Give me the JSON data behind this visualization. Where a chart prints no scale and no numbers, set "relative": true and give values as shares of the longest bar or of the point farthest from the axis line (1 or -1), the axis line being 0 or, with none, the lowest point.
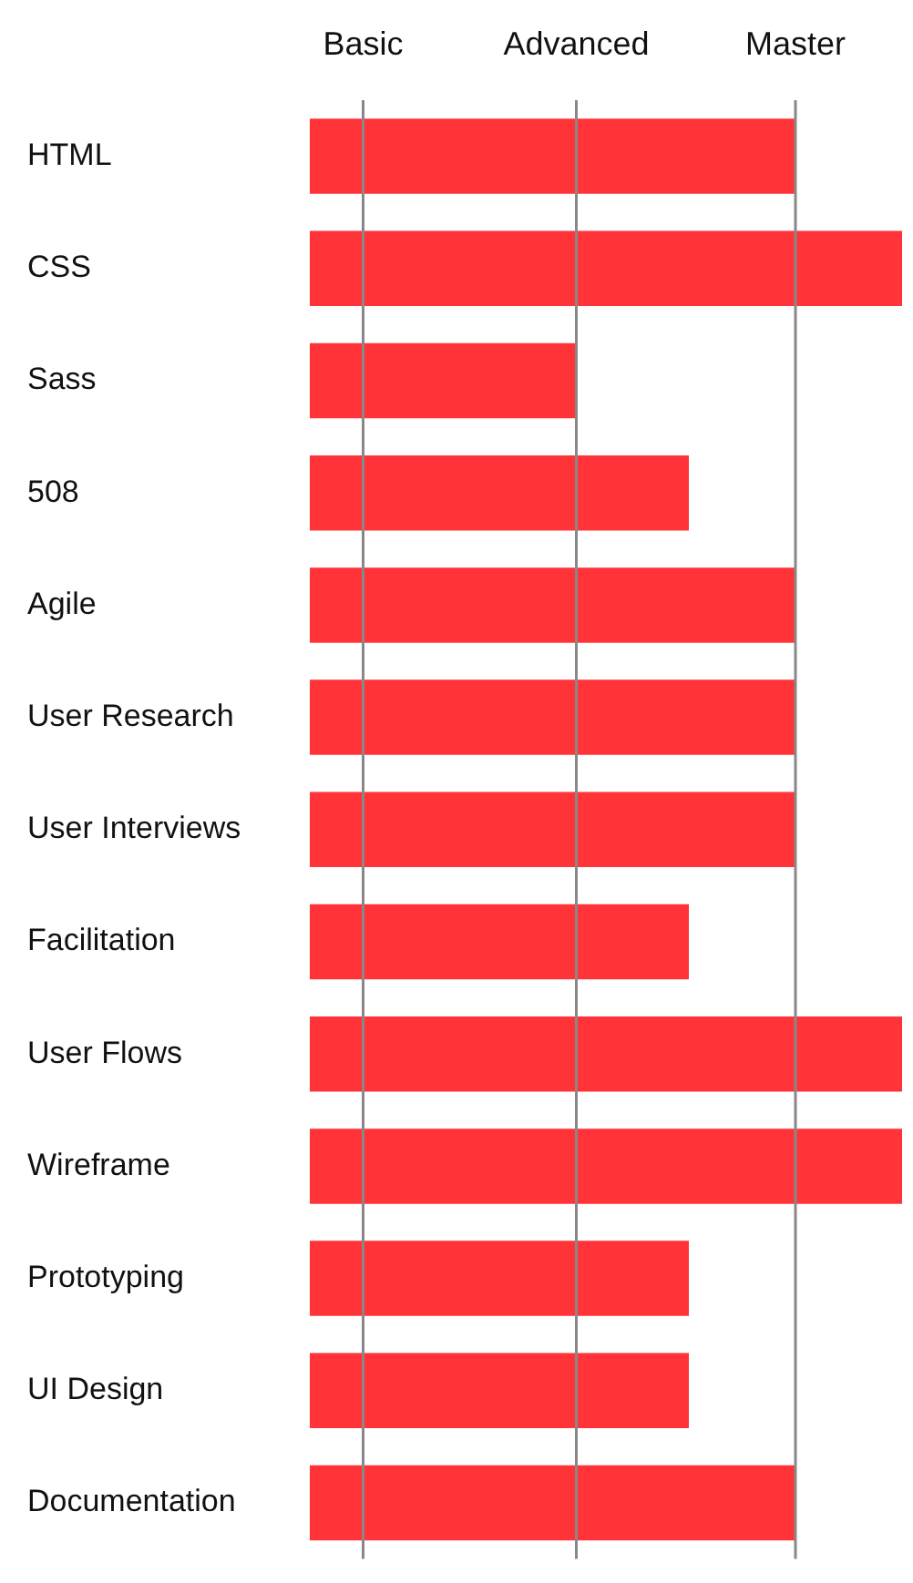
{
  "chart_data": {
    "type": "bar",
    "orientation": "horizontal",
    "relative": true,
    "categories": [
      "HTML",
      "CSS",
      "Sass",
      "508",
      "Agile",
      "User Research",
      "User Interviews",
      "Facilitation",
      "User Flows",
      "Wireframe",
      "Prototyping",
      "UI Design",
      "Documentation"
    ],
    "values": [
      0.82,
      1,
      0.45,
      0.64,
      0.82,
      0.82,
      0.82,
      0.64,
      1,
      1,
      0.64,
      0.64,
      0.82
    ],
    "color": "#ff3338",
    "ref_lines": [
      {
        "axis": "x",
        "value": 0.09,
        "label": "Basic",
        "color": "#888888"
      },
      {
        "axis": "x",
        "value": 0.45,
        "label": "Advanced",
        "color": "#888888"
      },
      {
        "axis": "x",
        "value": 0.82,
        "label": "Master",
        "color": "#888888"
      }
    ],
    "legend": false
  }
}
